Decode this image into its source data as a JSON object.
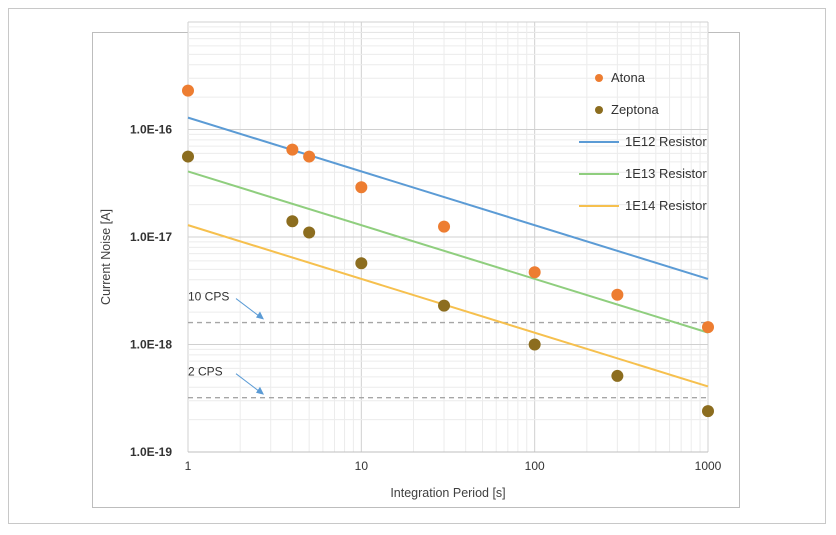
{
  "chart_data": {
    "type": "scatter",
    "xlabel": "Integration Period [s]",
    "ylabel": "Current Noise [A]",
    "x_scale": "log",
    "y_scale": "log",
    "xlim": [
      1,
      1000
    ],
    "ylim": [
      1e-19,
      1e-15
    ],
    "x_ticks": [
      "1",
      "10",
      "100",
      "1000"
    ],
    "y_ticks": [
      "1.0E-19",
      "1.0E-18",
      "1.0E-17",
      "1.0E-16"
    ],
    "grid": "major and minor, vertical and horizontal",
    "legend_position": "top-right",
    "series": [
      {
        "name": "Atona",
        "kind": "points",
        "color": "#ed7d31",
        "x": [
          1,
          4,
          5,
          10,
          30,
          100,
          300,
          1000
        ],
        "y": [
          2.3e-16,
          6.5e-17,
          5.6e-17,
          2.9e-17,
          1.25e-17,
          4.7e-18,
          2.9e-18,
          1.45e-18
        ]
      },
      {
        "name": "Zeptona",
        "kind": "points",
        "color": "#8c6d1f",
        "x": [
          1,
          4,
          5,
          10,
          30,
          100,
          300,
          1000
        ],
        "y": [
          5.6e-17,
          1.4e-17,
          1.1e-17,
          5.7e-18,
          2.3e-18,
          1e-18,
          5.1e-19,
          2.4e-19
        ]
      },
      {
        "name": "1E12 Resistor",
        "kind": "line",
        "color": "#5b9bd5",
        "x": [
          1,
          1000
        ],
        "y": [
          1.29e-16,
          4.07e-18
        ]
      },
      {
        "name": "1E13 Resistor",
        "kind": "line",
        "color": "#8fce7e",
        "x": [
          1,
          1000
        ],
        "y": [
          4.07e-17,
          1.29e-18
        ]
      },
      {
        "name": "1E14 Resistor",
        "kind": "line",
        "color": "#f6c04e",
        "x": [
          1,
          1000
        ],
        "y": [
          1.29e-17,
          4.07e-19
        ]
      }
    ],
    "reference_lines": [
      {
        "label": "10 CPS",
        "y": 1.6e-18,
        "color": "#a6a6a6",
        "style": "dashed"
      },
      {
        "label": "2 CPS",
        "y": 3.2e-19,
        "color": "#a6a6a6",
        "style": "dashed"
      }
    ],
    "annotation_arrow_color": "#5b9bd5"
  }
}
